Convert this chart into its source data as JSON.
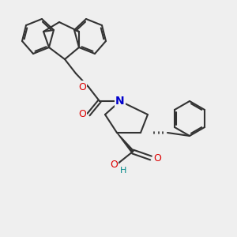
{
  "bg_color": "#efefef",
  "bond_color": "#333333",
  "bond_lw": 1.5,
  "atom_colors": {
    "O": "#dd0000",
    "N": "#0000cc",
    "C": "#333333",
    "H": "#008888"
  },
  "font_size": 9,
  "figsize": [
    3.0,
    3.0
  ],
  "dpi": 100
}
